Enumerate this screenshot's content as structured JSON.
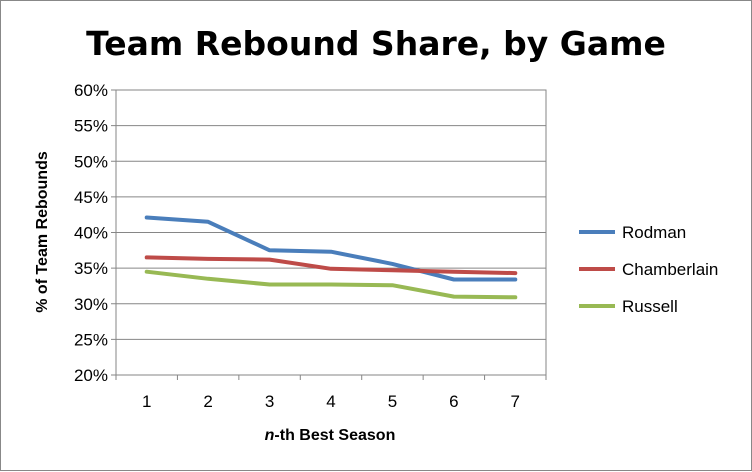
{
  "chart_data": {
    "type": "line",
    "title": "Team Rebound Share, by Game",
    "xlabel_prefix": "n",
    "xlabel_rest": "-th Best Season",
    "ylabel": "% of Team Rebounds",
    "x": [
      1,
      2,
      3,
      4,
      5,
      6,
      7
    ],
    "x_tick_labels": [
      "1",
      "2",
      "3",
      "4",
      "5",
      "6",
      "7"
    ],
    "ylim": [
      0.2,
      0.6
    ],
    "y_tick_labels": [
      "60%",
      "55%",
      "50%",
      "45%",
      "40%",
      "35%",
      "30%",
      "25%",
      "20%"
    ],
    "grid": true,
    "legend_position": "right",
    "series": [
      {
        "name": "Rodman",
        "color": "#4a7ebb",
        "values": [
          0.421,
          0.415,
          0.375,
          0.373,
          0.356,
          0.334,
          0.334
        ]
      },
      {
        "name": "Chamberlain",
        "color": "#be4b48",
        "values": [
          0.365,
          0.363,
          0.362,
          0.349,
          0.347,
          0.345,
          0.343
        ]
      },
      {
        "name": "Russell",
        "color": "#98b954",
        "values": [
          0.345,
          0.335,
          0.327,
          0.327,
          0.326,
          0.31,
          0.309
        ]
      }
    ]
  }
}
